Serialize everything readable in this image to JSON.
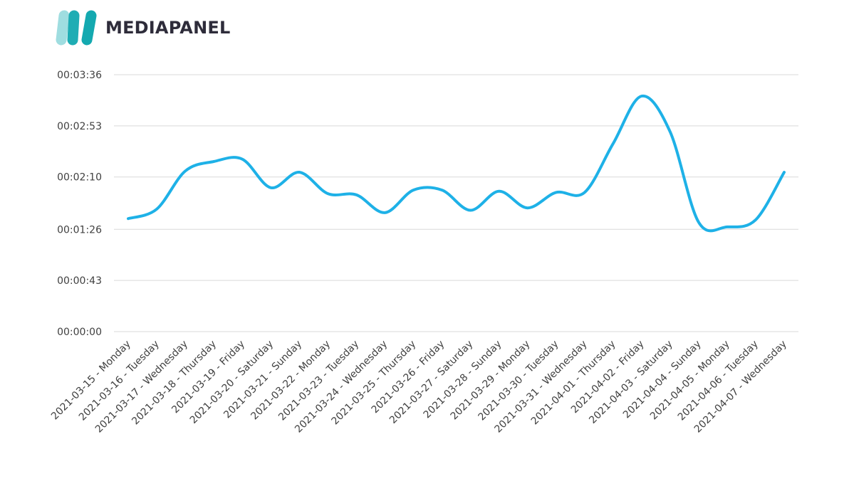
{
  "brand": {
    "name": "MEDIAPANEL",
    "colors": {
      "light": "#9fdde0",
      "dark": "#14a9b0",
      "text": "#2e2c3a"
    }
  },
  "chart_data": {
    "type": "line",
    "title": "",
    "xlabel": "",
    "ylabel": "",
    "value_unit": "seconds",
    "ylim": [
      0,
      216
    ],
    "y_tick_values": [
      0,
      43,
      86,
      130,
      173,
      216
    ],
    "y_tick_labels": [
      "00:00:00",
      "00:00:43",
      "00:01:26",
      "00:02:10",
      "00:02:53",
      "00:03:36"
    ],
    "grid": true,
    "legend": "none",
    "line_color": "#1eb1e7",
    "categories": [
      "2021-03-15 - Monday",
      "2021-03-16 - Tuesday",
      "2021-03-17 - Wednesday",
      "2021-03-18 - Thursday",
      "2021-03-19 - Friday",
      "2021-03-20 - Saturday",
      "2021-03-21 - Sunday",
      "2021-03-22 - Monday",
      "2021-03-23 - Tuesday",
      "2021-03-24 - Wednesday",
      "2021-03-25 - Thursday",
      "2021-03-26 - Friday",
      "2021-03-27 - Saturday",
      "2021-03-28 - Sunday",
      "2021-03-29 - Monday",
      "2021-03-30 - Tuesday",
      "2021-03-31 - Wednesday",
      "2021-04-01 - Thursday",
      "2021-04-02 - Friday",
      "2021-04-03 - Saturday",
      "2021-04-04 - Sunday",
      "2021-04-05 - Monday",
      "2021-04-06 - Tuesday",
      "2021-04-07 - Wednesday"
    ],
    "series": [
      {
        "values": [
          95,
          103,
          135,
          143,
          145,
          121,
          134,
          116,
          115,
          100,
          119,
          119,
          102,
          118,
          104,
          117,
          117,
          158,
          198,
          168,
          92,
          88,
          94,
          134
        ]
      }
    ]
  }
}
